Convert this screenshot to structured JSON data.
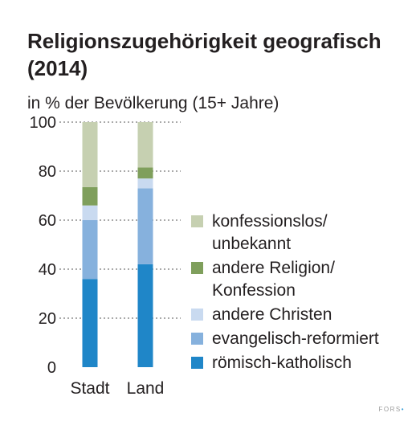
{
  "chart_data": {
    "type": "bar",
    "stacked": true,
    "title": "Religionszugehörigkeit geografisch (2014)",
    "subtitle": "in % der Bevölkerung (15+ Jahre)",
    "categories": [
      "Stadt",
      "Land"
    ],
    "series": [
      {
        "name": "römisch-katholisch",
        "color": "#1f86c8",
        "values": [
          36,
          42
        ]
      },
      {
        "name": "evangelisch-reformiert",
        "color": "#86b1dd",
        "values": [
          24,
          31
        ]
      },
      {
        "name": "andere Christen",
        "color": "#c9daf0",
        "values": [
          6,
          4
        ]
      },
      {
        "name": "andere Religion/ Konfession",
        "color": "#7f9f5c",
        "values": [
          7.5,
          4.5
        ]
      },
      {
        "name": "konfessionslos/ unbekannt",
        "color": "#c6d0b1",
        "values": [
          26.5,
          18.5
        ]
      }
    ],
    "ylim": [
      0,
      100
    ],
    "yticks": [
      0,
      20,
      40,
      60,
      80,
      100
    ],
    "grid": true,
    "legend_position": "right"
  },
  "legend_items": [
    {
      "label_lines": [
        "konfessionslos/",
        "unbekannt"
      ],
      "color": "#c6d0b1"
    },
    {
      "label_lines": [
        "andere Religion/",
        "Konfession"
      ],
      "color": "#7f9f5c"
    },
    {
      "label_lines": [
        "andere Christen"
      ],
      "color": "#c9daf0"
    },
    {
      "label_lines": [
        "evangelisch-reformiert"
      ],
      "color": "#86b1dd"
    },
    {
      "label_lines": [
        "römisch-katholisch"
      ],
      "color": "#1f86c8"
    }
  ],
  "brand": {
    "text": "FORS",
    "mark": "•"
  }
}
